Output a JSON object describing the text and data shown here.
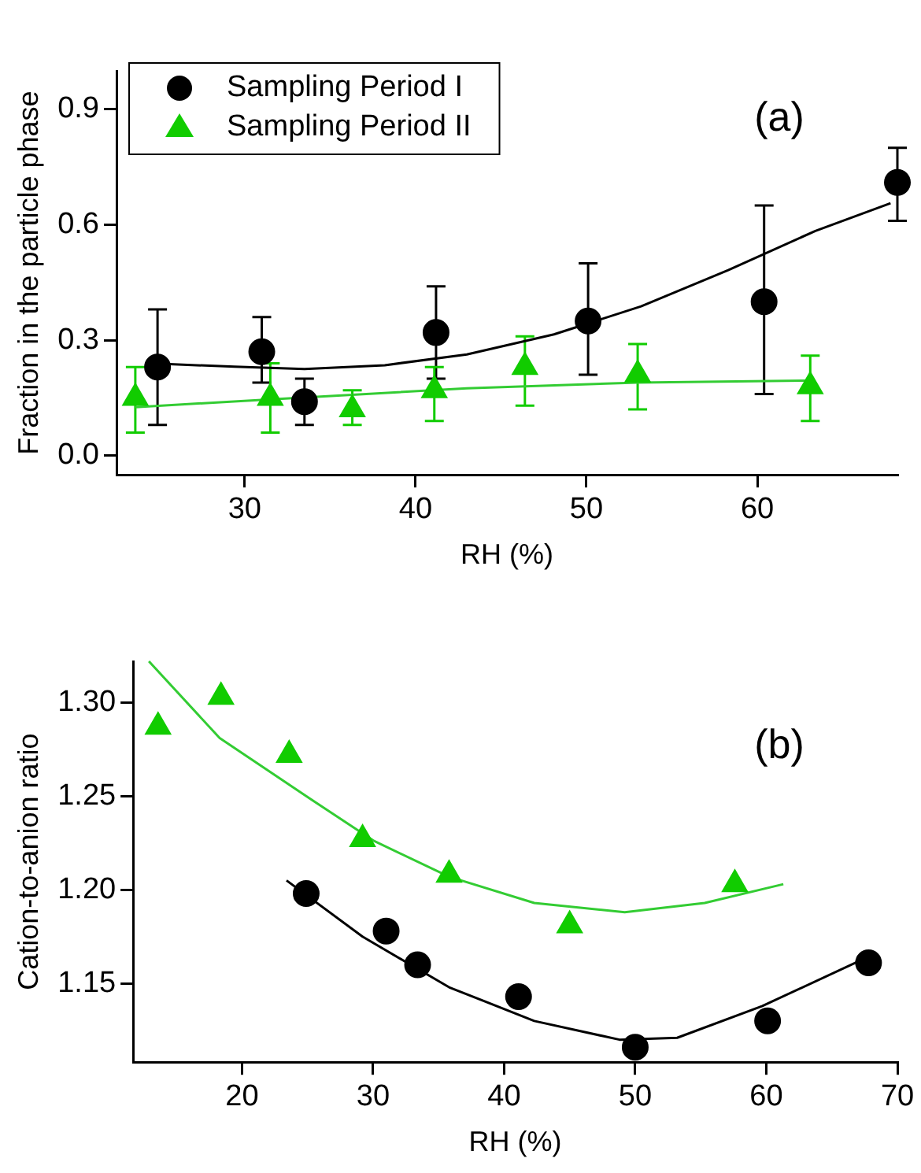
{
  "chart_data": [
    {
      "type": "scatter",
      "xlabel": "RH (%)",
      "ylabel": "Fraction in the particle phase",
      "annotations": [
        "(a)"
      ],
      "xlim": [
        22.5,
        68.2
      ],
      "xticks": [
        30,
        40,
        50,
        60
      ],
      "ylim": [
        -0.05,
        1.0
      ],
      "yticks": [
        {
          "value": 0,
          "label": "0.0"
        },
        0.3,
        0.6,
        0.9
      ],
      "grid": false,
      "legend": "top left",
      "series": [
        {
          "name": "Sampling Period I",
          "color": "#000000",
          "marker": "circle",
          "x": [
            24.9,
            31.0,
            33.5,
            41.2,
            50.1,
            60.4,
            68.2
          ],
          "values": [
            0.23,
            0.27,
            0.14,
            0.32,
            0.35,
            0.4,
            0.71
          ],
          "errors": [
            [
              0.08,
              0.38
            ],
            [
              0.19,
              0.36
            ],
            [
              0.08,
              0.2
            ],
            [
              0.2,
              0.44
            ],
            [
              0.21,
              0.5
            ],
            [
              0.16,
              0.65
            ],
            [
              0.61,
              0.8
            ]
          ]
        },
        {
          "name": "Sampling Period II",
          "color": "#11cc00",
          "marker": "triangle",
          "x": [
            23.6,
            31.5,
            36.3,
            41.1,
            46.4,
            53.0,
            63.1
          ],
          "values": [
            0.15,
            0.15,
            0.12,
            0.17,
            0.23,
            0.21,
            0.18
          ],
          "errors": [
            [
              0.06,
              0.23
            ],
            [
              0.06,
              0.24
            ],
            [
              0.08,
              0.17
            ],
            [
              0.09,
              0.23
            ],
            [
              0.13,
              0.31
            ],
            [
              0.12,
              0.29
            ],
            [
              0.09,
              0.26
            ]
          ]
        },
        {
          "type": "line",
          "color": "#000000",
          "marker": "none",
          "x": [
            24.5,
            29.4,
            33.5,
            38.2,
            43.0,
            48.1,
            53.2,
            58.3,
            63.4,
            67.8
          ],
          "values": [
            0.24,
            0.231,
            0.225,
            0.235,
            0.263,
            0.315,
            0.388,
            0.482,
            0.584,
            0.656
          ]
        },
        {
          "type": "line",
          "color": "#33cc33",
          "marker": "none",
          "x": [
            23.6,
            33,
            43,
            53,
            63.1
          ],
          "values": [
            0.126,
            0.15,
            0.175,
            0.19,
            0.195
          ]
        }
      ]
    },
    {
      "type": "scatter",
      "xlabel": "RH (%)",
      "ylabel": "Cation-to-anion ratio",
      "annotations": [
        "(b)"
      ],
      "xlim": [
        11.7,
        70
      ],
      "xticks": [
        20,
        30,
        40,
        50,
        60,
        70
      ],
      "ylim": [
        1.108,
        1.322
      ],
      "yticks": [
        1.15,
        {
          "value": 1.2,
          "label": "1.20"
        },
        1.25,
        {
          "value": 1.3,
          "label": "1.30"
        }
      ],
      "grid": false,
      "series": [
        {
          "color": "#11cc00",
          "marker": "triangle",
          "x": [
            13.6,
            18.4,
            23.6,
            29.2,
            35.8,
            45.0,
            57.6
          ],
          "values": [
            1.287,
            1.303,
            1.272,
            1.227,
            1.208,
            1.181,
            1.203
          ]
        },
        {
          "color": "#000000",
          "marker": "circle",
          "x": [
            24.9,
            31.0,
            33.4,
            41.1,
            50.0,
            60.1,
            67.8
          ],
          "values": [
            1.198,
            1.178,
            1.16,
            1.143,
            1.116,
            1.13,
            1.161
          ]
        },
        {
          "type": "line",
          "color": "#33cc33",
          "marker": "none",
          "x": [
            12.9,
            18.3,
            24.9,
            30.1,
            35.8,
            42.3,
            49.2,
            55.3,
            61.3
          ],
          "values": [
            1.322,
            1.281,
            1.25,
            1.226,
            1.207,
            1.193,
            1.188,
            1.193,
            1.203
          ]
        },
        {
          "type": "line",
          "color": "#000000",
          "marker": "none",
          "x": [
            23.4,
            29.2,
            35.8,
            42.3,
            48.8,
            53.2,
            59.7,
            67.1
          ],
          "values": [
            1.205,
            1.175,
            1.148,
            1.13,
            1.12,
            1.121,
            1.138,
            1.162
          ]
        }
      ]
    }
  ]
}
